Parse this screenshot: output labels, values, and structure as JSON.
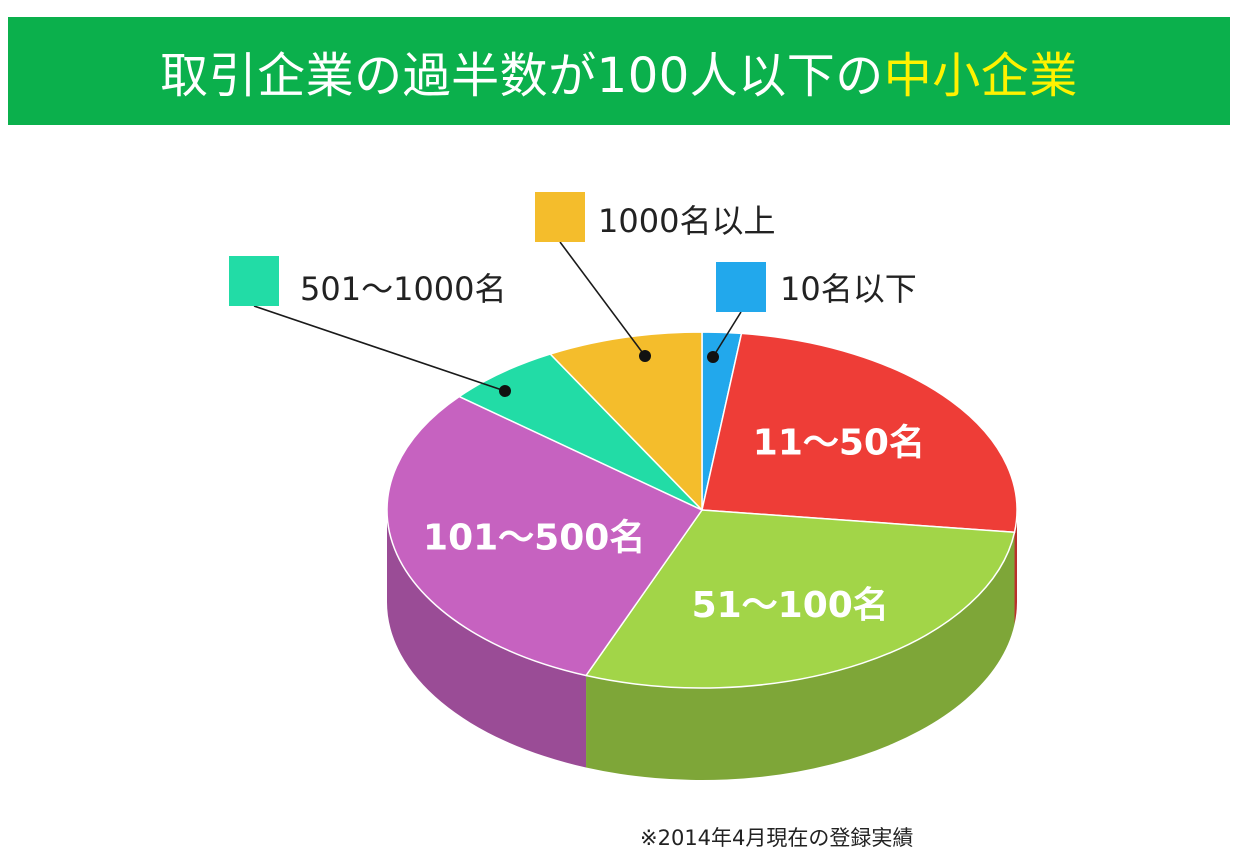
{
  "header": {
    "title_main": "取引企業の過半数が100人以下の",
    "title_highlight": "中小企業",
    "background_color": "#0bb04c",
    "highlight_color": "#fff200"
  },
  "chart_data": {
    "type": "pie",
    "style": "3d",
    "legend_placement": "callouts",
    "slices": [
      {
        "label": "10名以下",
        "value": 2,
        "color": "#22a8ec",
        "label_style": "callout"
      },
      {
        "label": "11〜50名",
        "value": 25,
        "color": "#ee3d37",
        "label_style": "inside"
      },
      {
        "label": "51〜100名",
        "value": 29,
        "color": "#a2d548",
        "label_style": "inside"
      },
      {
        "label": "101〜500名",
        "value": 30,
        "color": "#c662c0",
        "label_style": "inside"
      },
      {
        "label": "501〜1000名",
        "value": 6,
        "color": "#22dca6",
        "label_style": "callout"
      },
      {
        "label": "1000名以上",
        "value": 8,
        "color": "#f4bd2c",
        "label_style": "callout"
      }
    ]
  },
  "footnote": "※2014年4月現在の登録実績"
}
